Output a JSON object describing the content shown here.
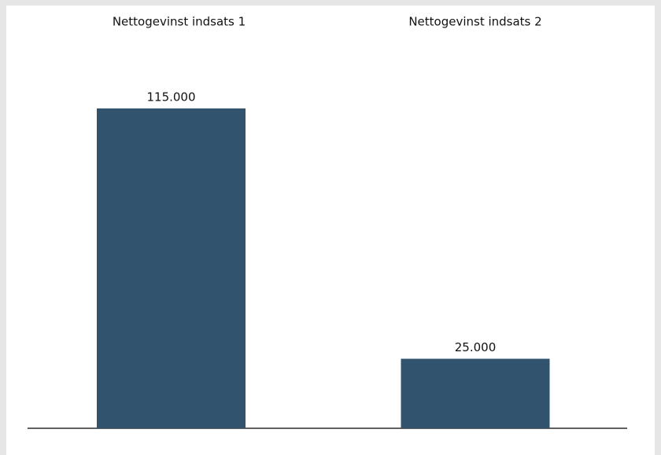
{
  "chart_data": {
    "type": "bar",
    "categories": [
      "Nettogevinst indsats 1",
      "Nettogevinst indsats 2"
    ],
    "values": [
      115000,
      25000
    ],
    "value_labels": [
      "115.000",
      "25.000"
    ],
    "color": "#31536e"
  }
}
